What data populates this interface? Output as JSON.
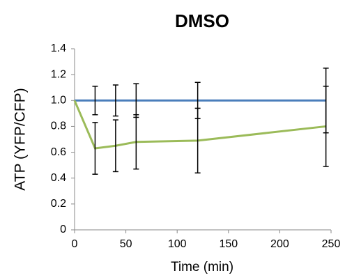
{
  "chart_data": {
    "type": "line",
    "title": "DMSO",
    "x_label": "Time (min)",
    "y_label": "ATP (YFP/CFP)",
    "x": [
      0,
      20,
      40,
      60,
      120,
      245
    ],
    "series": [
      {
        "color": "#4a7ebb",
        "values": [
          1,
          1,
          1,
          1,
          1,
          1
        ],
        "errors": [
          null,
          0.11,
          0.12,
          0.13,
          0.14,
          0.25
        ]
      },
      {
        "color": "#9bbb59",
        "values": [
          1,
          0.63,
          0.65,
          0.68,
          0.69,
          0.8
        ],
        "errors": [
          null,
          0.2,
          0.2,
          0.21,
          0.25,
          0.31
        ]
      }
    ],
    "error_color": "#000000",
    "xlim": [
      0,
      250
    ],
    "xticks": [
      0,
      50,
      100,
      150,
      200,
      250
    ],
    "ylim": [
      0,
      1.4
    ],
    "yticks": [
      0,
      0.2,
      0.4,
      0.6,
      0.8,
      {
        "value": 1,
        "label": "1.0"
      },
      1.2,
      1.4
    ]
  }
}
